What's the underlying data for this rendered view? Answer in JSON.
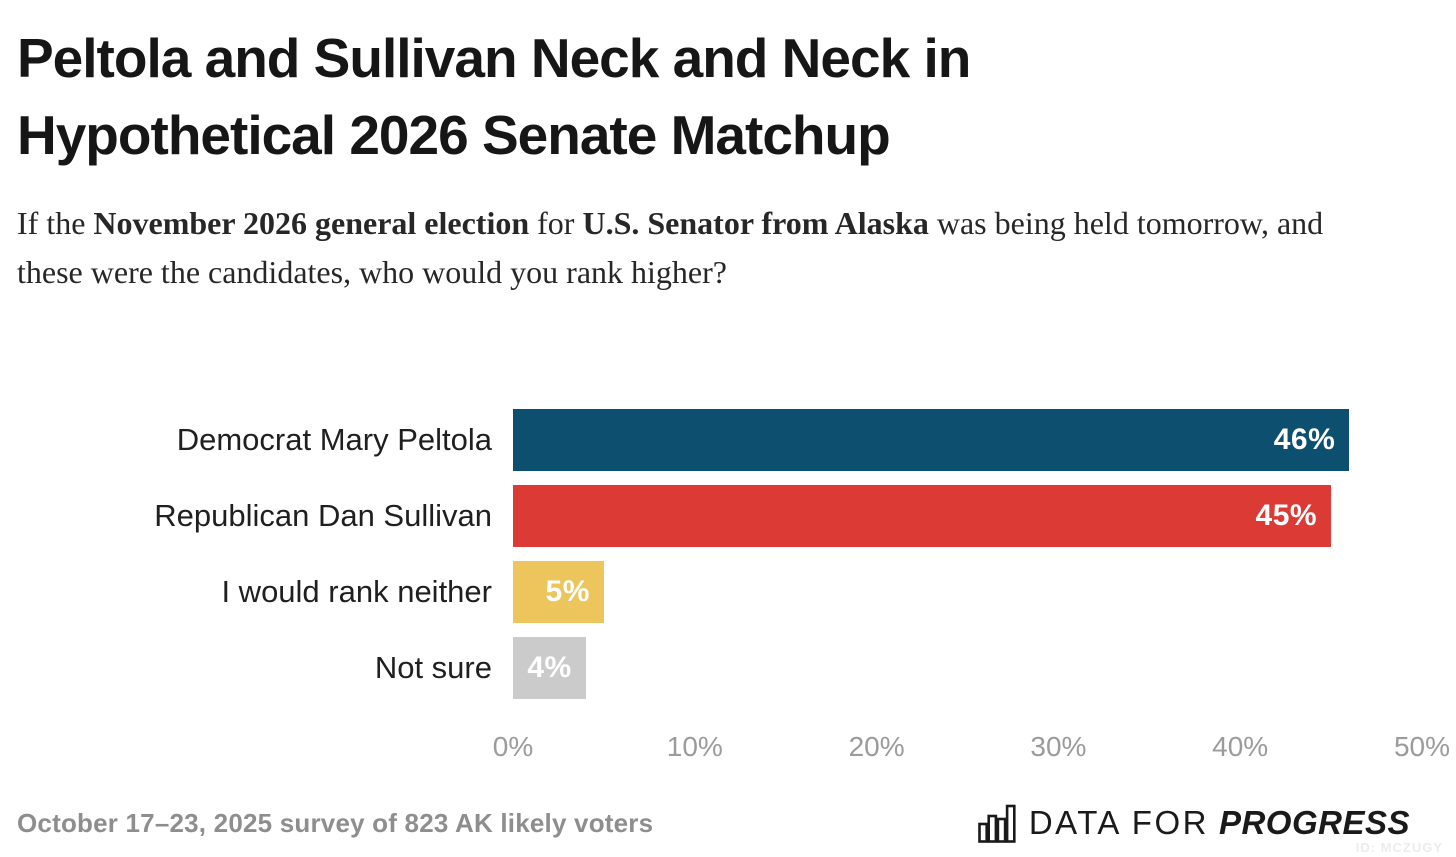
{
  "chart_data": {
    "type": "bar",
    "orientation": "horizontal",
    "title_lines": [
      "Peltola and Sullivan Neck and Neck in",
      "Hypothetical 2026 Senate Matchup"
    ],
    "subtitle_segments": [
      {
        "text": "If the ",
        "bold": false
      },
      {
        "text": "November 2026 general election",
        "bold": true
      },
      {
        "text": " for ",
        "bold": false
      },
      {
        "text": "U.S. Senator from Alaska",
        "bold": true
      },
      {
        "text": " was being held tomorrow, and these were the candidates, who would you rank higher?",
        "bold": false
      }
    ],
    "categories": [
      "Democrat Mary Peltola",
      "Republican Dan Sullivan",
      "I would rank neither",
      "Not sure"
    ],
    "values": [
      46,
      45,
      5,
      4
    ],
    "value_labels": [
      "46%",
      "45%",
      "5%",
      "4%"
    ],
    "bar_colors": [
      "#0d4f6e",
      "#db3a35",
      "#ecc65d",
      "#cbcbcb"
    ],
    "xlim": [
      0,
      50
    ],
    "x_ticks": [
      "0%",
      "10%",
      "20%",
      "30%",
      "40%",
      "50%"
    ],
    "xlabel": "",
    "ylabel": "",
    "grid": false,
    "legend_position": "none"
  },
  "footer": {
    "survey_note": "October 17–23, 2025 survey of 823 AK likely voters",
    "logo": {
      "icon": "bar-chart-icon",
      "text_light": "DATA FOR",
      "text_bold": "PROGRESS"
    },
    "id_label": "ID: MCZUGY"
  },
  "colors": {
    "democrat_blue": "#0d4f6e",
    "republican_red": "#db3a35",
    "neither_yellow": "#ecc65d",
    "not_sure_gray": "#cbcbcb",
    "axis_gray": "#9b9b9b",
    "footer_gray": "#8e8e8e"
  }
}
